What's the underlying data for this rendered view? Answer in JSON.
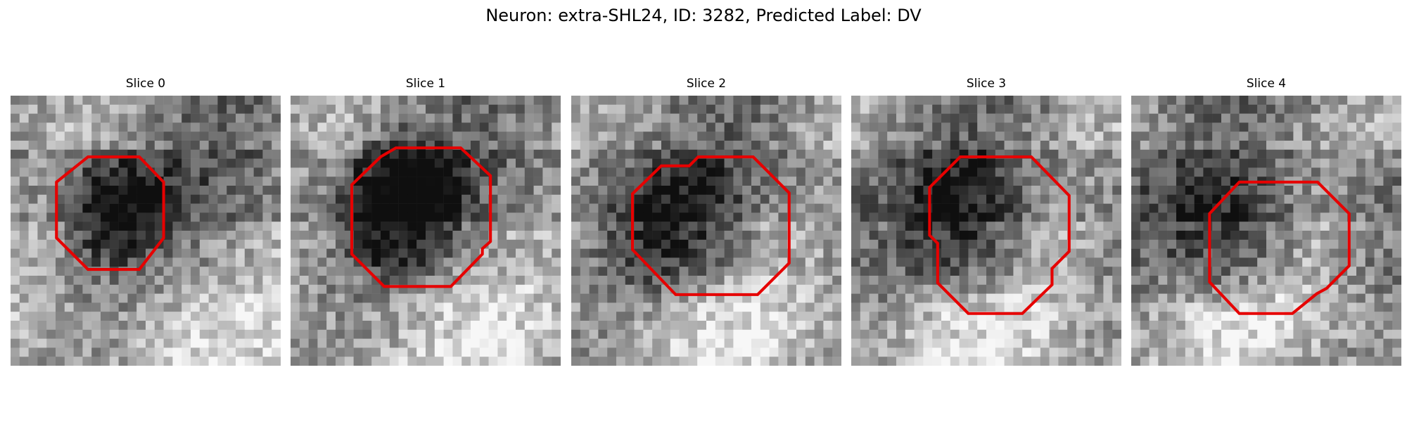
{
  "figure": {
    "title": "Neuron: extra-SHL24, ID: 3282, Predicted Label: DV"
  },
  "colors": {
    "contour": "#e60000",
    "background": "#ffffff"
  },
  "slices": [
    {
      "label": "Slice 0",
      "seed": 11,
      "patch": {
        "center": [
          11.5,
          12.5
        ],
        "radius": [
          6,
          5.5
        ],
        "dark": 0.42
      }
    },
    {
      "label": "Slice 1",
      "seed": 23,
      "patch": {
        "center": [
          12.5,
          12.0
        ],
        "radius": [
          6.5,
          7.5
        ],
        "dark": 0.5
      }
    },
    {
      "label": "Slice 2",
      "seed": 37,
      "patch": {
        "center": [
          12.0,
          14.5
        ],
        "radius": [
          7,
          6.5
        ],
        "dark": 0.3
      }
    },
    {
      "label": "Slice 3",
      "seed": 51,
      "patch": {
        "center": [
          13.0,
          14.5
        ],
        "radius": [
          6,
          7.5
        ],
        "dark": 0.35
      }
    },
    {
      "label": "Slice 4",
      "seed": 67,
      "patch": {
        "center": [
          11.5,
          16.0
        ],
        "radius": [
          6,
          6.5
        ],
        "dark": 0.3
      }
    }
  ]
}
